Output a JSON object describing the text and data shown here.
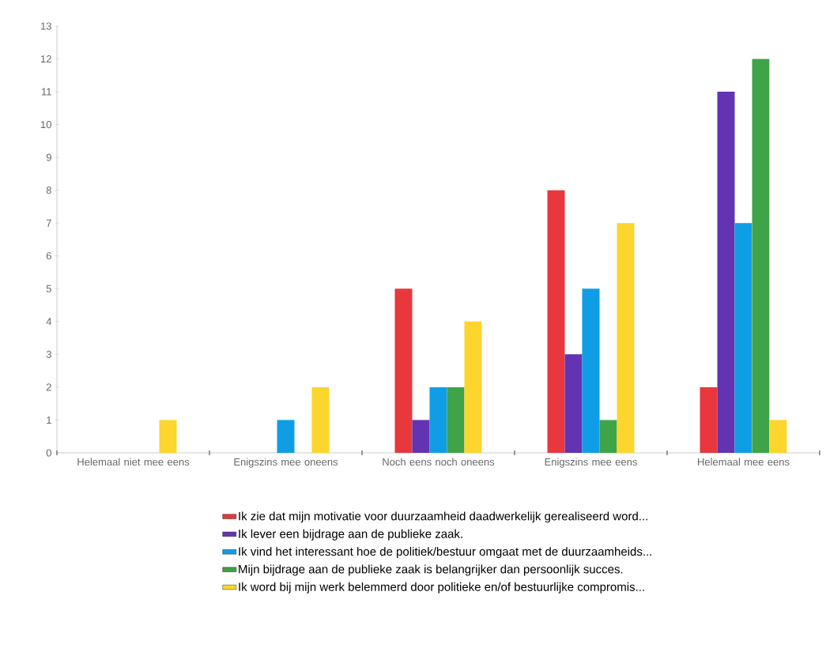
{
  "chart_data": {
    "type": "bar",
    "categories": [
      "Helemaal niet mee eens",
      "Enigszins mee oneens",
      "Noch eens noch oneens",
      "Enigszins mee eens",
      "Helemaal mee eens"
    ],
    "series": [
      {
        "name": "Ik zie dat mijn motivatie voor duurzaamheid daadwerkelijk gerealiseerd word...",
        "color": "#e8383d",
        "values": [
          0,
          0,
          5,
          8,
          2
        ]
      },
      {
        "name": "Ik lever een bijdrage aan de publieke zaak.",
        "color": "#6234b1",
        "values": [
          0,
          0,
          1,
          3,
          11
        ]
      },
      {
        "name": "Ik vind het interessant hoe de politiek/bestuur omgaat met de duurzaamheids...",
        "color": "#0f9ee6",
        "values": [
          0,
          1,
          2,
          5,
          7
        ]
      },
      {
        "name": "Mijn bijdrage aan de publieke zaak is belangrijker dan persoonlijk succes.",
        "color": "#3fa348",
        "values": [
          0,
          0,
          2,
          1,
          12
        ]
      },
      {
        "name": "Ik word bij mijn werk belemmerd door politieke en/of bestuurlijke compromis...",
        "color": "#fcd52d",
        "values": [
          1,
          2,
          4,
          7,
          1
        ]
      }
    ],
    "ylim": [
      0,
      13
    ],
    "yticks": [
      0,
      1,
      2,
      3,
      4,
      5,
      6,
      7,
      8,
      9,
      10,
      11,
      12,
      13
    ],
    "grid": false,
    "legend": "bottom"
  }
}
